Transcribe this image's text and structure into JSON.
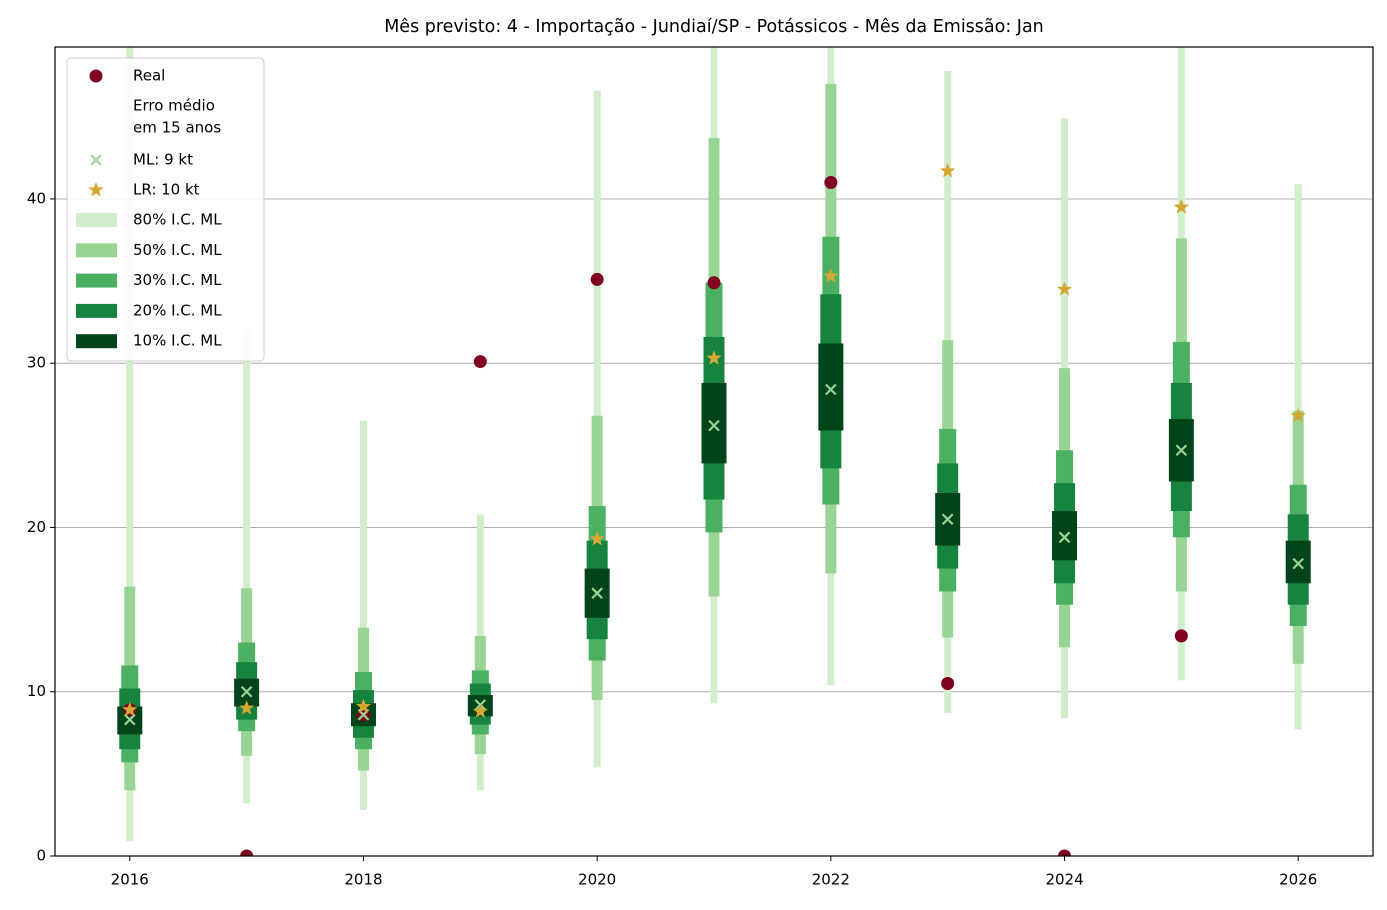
{
  "chart_data": {
    "type": "interval",
    "title": "Mês previsto: 4 - Importação - Jundiaí/SP - Potássicos - Mês da Emissão: Jan",
    "x": [
      2016,
      2017,
      2018,
      2019,
      2020,
      2021,
      2022,
      2023,
      2024,
      2025,
      2026
    ],
    "xlim": [
      2015.36,
      2026.64
    ],
    "xticks": [
      2016,
      2018,
      2020,
      2022,
      2024,
      2026
    ],
    "ylim": [
      0,
      49.25
    ],
    "yticks": [
      0,
      10,
      20,
      30,
      40
    ],
    "grid": true,
    "legend": "upper left",
    "legend_note": [
      "Erro médio",
      "em 15 anos"
    ],
    "series": [
      {
        "name": "Real",
        "marker": "circle",
        "color": "#7f0020",
        "values": [
          8.9,
          0,
          8.6,
          30.1,
          35.1,
          34.9,
          41.0,
          10.5,
          0,
          13.4,
          null
        ]
      },
      {
        "name": "ML: 9 kt",
        "marker": "x",
        "color": "#98d594",
        "values": [
          8.3,
          10.0,
          8.6,
          9.2,
          16.0,
          26.2,
          28.4,
          20.5,
          19.4,
          24.7,
          17.8
        ]
      },
      {
        "name": "LR: 10 kt",
        "marker": "star",
        "color": "#d4a634",
        "values": [
          8.9,
          9.0,
          9.1,
          8.8,
          19.3,
          30.3,
          35.3,
          41.7,
          34.5,
          39.5,
          26.8
        ]
      }
    ],
    "intervals": [
      {
        "name": "80% I.C. ML",
        "color": "#d1edcb",
        "low": [
          0.9,
          3.2,
          2.8,
          4.0,
          5.4,
          9.3,
          10.4,
          8.7,
          8.4,
          10.7,
          7.7
        ],
        "high": [
          50,
          32,
          26.5,
          20.8,
          46.6,
          50,
          50,
          47.8,
          44.9,
          50,
          40.9
        ]
      },
      {
        "name": "50% I.C. ML",
        "color": "#98d594",
        "low": [
          4.0,
          6.1,
          5.2,
          6.2,
          9.5,
          15.8,
          17.2,
          13.3,
          12.7,
          16.1,
          11.7
        ],
        "high": [
          16.4,
          16.3,
          13.9,
          13.4,
          26.8,
          43.7,
          47.0,
          31.4,
          29.7,
          37.6,
          27.1
        ]
      },
      {
        "name": "30% I.C. ML",
        "color": "#4bb062",
        "low": [
          5.7,
          7.6,
          6.5,
          7.4,
          11.9,
          19.7,
          21.4,
          16.1,
          15.3,
          19.4,
          14.0
        ],
        "high": [
          11.6,
          13.0,
          11.2,
          11.3,
          21.3,
          34.9,
          37.7,
          26.0,
          24.7,
          31.3,
          22.6
        ]
      },
      {
        "name": "20% I.C. ML",
        "color": "#16833f",
        "low": [
          6.5,
          8.3,
          7.2,
          8.0,
          13.2,
          21.7,
          23.6,
          17.5,
          16.6,
          21.0,
          15.3
        ],
        "high": [
          10.2,
          11.8,
          10.1,
          10.5,
          19.2,
          31.6,
          34.2,
          23.9,
          22.7,
          28.8,
          20.8
        ]
      },
      {
        "name": "10% I.C. ML",
        "color": "#00441b",
        "low": [
          7.4,
          9.1,
          7.9,
          8.5,
          14.5,
          23.9,
          25.9,
          18.9,
          18.0,
          22.8,
          16.6
        ],
        "high": [
          9.1,
          10.8,
          9.3,
          9.8,
          17.5,
          28.8,
          31.2,
          22.1,
          21.0,
          26.6,
          19.2
        ]
      }
    ]
  }
}
